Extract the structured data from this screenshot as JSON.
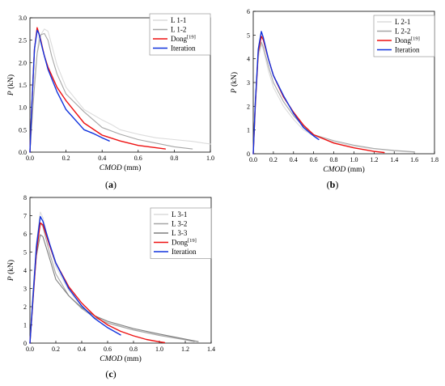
{
  "chart_data": [
    {
      "type": "line",
      "panel_label": "(a)",
      "xlabel": "CMOD (mm)",
      "ylabel": "P (kN)",
      "xlim": [
        0,
        1.0
      ],
      "ylim": [
        0,
        3.0
      ],
      "xticks": [
        "0.0",
        "0.2",
        "0.4",
        "0.6",
        "0.8",
        "1.0"
      ],
      "yticks": [
        "0.0",
        "0.5",
        "1.0",
        "1.5",
        "2.0",
        "2.5",
        "3.0"
      ],
      "legend_position": "top-right",
      "series": [
        {
          "name": "L 1-1",
          "color": "#dcdcdc",
          "x": [
            0,
            0.02,
            0.05,
            0.08,
            0.1,
            0.12,
            0.15,
            0.2,
            0.3,
            0.4,
            0.45,
            0.5,
            0.6,
            0.7,
            0.8,
            0.9,
            1.0
          ],
          "y": [
            0,
            1.5,
            2.55,
            2.75,
            2.7,
            2.4,
            1.95,
            1.45,
            0.95,
            0.72,
            0.62,
            0.5,
            0.4,
            0.32,
            0.28,
            0.24,
            0.18
          ]
        },
        {
          "name": "L 1-2",
          "color": "#a6a6a6",
          "x": [
            0,
            0.02,
            0.04,
            0.06,
            0.08,
            0.1,
            0.12,
            0.15,
            0.2,
            0.3,
            0.4,
            0.5,
            0.6,
            0.7,
            0.8,
            0.9
          ],
          "y": [
            0,
            1.2,
            2.2,
            2.62,
            2.65,
            2.5,
            2.15,
            1.75,
            1.3,
            0.9,
            0.55,
            0.4,
            0.28,
            0.2,
            0.12,
            0.07
          ]
        },
        {
          "name": "Dong",
          "superscript": "[19]",
          "color": "#ee1111",
          "x": [
            0,
            0.01,
            0.025,
            0.04,
            0.06,
            0.08,
            0.1,
            0.15,
            0.2,
            0.3,
            0.4,
            0.5,
            0.6,
            0.75
          ],
          "y": [
            0,
            1.0,
            2.3,
            2.78,
            2.5,
            2.15,
            1.9,
            1.45,
            1.15,
            0.65,
            0.38,
            0.25,
            0.15,
            0.07
          ]
        },
        {
          "name": "Iteration",
          "color": "#1133dd",
          "x": [
            0,
            0.01,
            0.025,
            0.04,
            0.05,
            0.07,
            0.1,
            0.15,
            0.2,
            0.3,
            0.35,
            0.4,
            0.44
          ],
          "y": [
            0,
            1.0,
            2.3,
            2.72,
            2.65,
            2.3,
            1.85,
            1.35,
            0.95,
            0.5,
            0.42,
            0.32,
            0.25
          ]
        }
      ]
    },
    {
      "type": "line",
      "panel_label": "(b)",
      "xlabel": "CMOD (mm)",
      "ylabel": "P (kN)",
      "xlim": [
        0,
        1.8
      ],
      "ylim": [
        0,
        6
      ],
      "xticks": [
        "0.0",
        "0.2",
        "0.4",
        "0.6",
        "0.8",
        "1.0",
        "1.2",
        "1.4",
        "1.6",
        "1.8"
      ],
      "yticks": [
        "0",
        "1",
        "2",
        "3",
        "4",
        "5",
        "6"
      ],
      "legend_position": "top-right",
      "series": [
        {
          "name": "L 2-1",
          "color": "#dcdcdc",
          "x": [
            0,
            0.02,
            0.05,
            0.08,
            0.1,
            0.15,
            0.2,
            0.3,
            0.4,
            0.5,
            0.6,
            0.8,
            1.0,
            1.2,
            1.4,
            1.6
          ],
          "y": [
            0,
            2.0,
            4.0,
            4.6,
            4.4,
            3.5,
            2.8,
            2.0,
            1.45,
            1.0,
            0.75,
            0.5,
            0.32,
            0.2,
            0.12,
            0.06
          ]
        },
        {
          "name": "L 2-2",
          "color": "#a6a6a6",
          "x": [
            0,
            0.02,
            0.05,
            0.08,
            0.1,
            0.15,
            0.2,
            0.3,
            0.4,
            0.5,
            0.6,
            0.8,
            1.0,
            1.2,
            1.4,
            1.6
          ],
          "y": [
            0,
            2.2,
            4.2,
            4.7,
            4.5,
            3.7,
            3.0,
            2.2,
            1.6,
            1.15,
            0.8,
            0.55,
            0.36,
            0.22,
            0.14,
            0.08
          ]
        },
        {
          "name": "Dong",
          "superscript": "[19]",
          "color": "#ee1111",
          "x": [
            0,
            0.02,
            0.05,
            0.08,
            0.1,
            0.15,
            0.2,
            0.3,
            0.4,
            0.5,
            0.6,
            0.8,
            1.0,
            1.2,
            1.3
          ],
          "y": [
            0,
            2.0,
            4.3,
            4.95,
            4.8,
            4.0,
            3.3,
            2.4,
            1.75,
            1.2,
            0.8,
            0.45,
            0.25,
            0.1,
            0.05
          ]
        },
        {
          "name": "Iteration",
          "color": "#1133dd",
          "x": [
            0,
            0.02,
            0.05,
            0.08,
            0.1,
            0.15,
            0.2,
            0.3,
            0.4,
            0.5,
            0.6,
            0.65
          ],
          "y": [
            0,
            2.1,
            4.4,
            5.15,
            4.9,
            4.0,
            3.3,
            2.45,
            1.7,
            1.1,
            0.75,
            0.6
          ]
        }
      ]
    },
    {
      "type": "line",
      "panel_label": "(c)",
      "xlabel": "CMOD (mm)",
      "ylabel": "P (kN)",
      "xlim": [
        0,
        1.4
      ],
      "ylim": [
        0,
        8
      ],
      "xticks": [
        "0.0",
        "0.2",
        "0.4",
        "0.6",
        "0.8",
        "1.0",
        "1.2",
        "1.4"
      ],
      "yticks": [
        "0",
        "1",
        "2",
        "3",
        "4",
        "5",
        "6",
        "7",
        "8"
      ],
      "legend_position": "top-right",
      "series": [
        {
          "name": "L 3-1",
          "color": "#dcdcdc",
          "x": [
            0,
            0.02,
            0.05,
            0.08,
            0.1,
            0.15,
            0.2,
            0.3,
            0.4,
            0.5,
            0.6,
            0.8,
            1.0,
            1.2,
            1.25
          ],
          "y": [
            0,
            2.5,
            5.5,
            7.2,
            6.9,
            5.4,
            4.2,
            2.9,
            2.0,
            1.5,
            1.15,
            0.75,
            0.45,
            0.2,
            0.1
          ]
        },
        {
          "name": "L 3-2",
          "color": "#a6a6a6",
          "x": [
            0,
            0.02,
            0.05,
            0.08,
            0.1,
            0.15,
            0.2,
            0.3,
            0.4,
            0.5,
            0.6,
            0.8,
            1.0,
            1.2,
            1.27
          ],
          "y": [
            0,
            2.4,
            5.3,
            6.6,
            6.4,
            5.0,
            3.8,
            2.6,
            1.9,
            1.4,
            1.1,
            0.72,
            0.42,
            0.18,
            0.08
          ]
        },
        {
          "name": "L 3-3",
          "color": "#7f7f7f",
          "x": [
            0,
            0.02,
            0.05,
            0.08,
            0.1,
            0.15,
            0.2,
            0.3,
            0.4,
            0.5,
            0.6,
            0.8,
            1.0,
            1.2,
            1.3
          ],
          "y": [
            0,
            2.2,
            4.8,
            5.95,
            5.85,
            4.7,
            3.5,
            2.6,
            1.95,
            1.5,
            1.2,
            0.8,
            0.5,
            0.22,
            0.08
          ]
        },
        {
          "name": "Dong",
          "superscript": "[19]",
          "color": "#ee1111",
          "x": [
            0,
            0.02,
            0.05,
            0.08,
            0.1,
            0.15,
            0.2,
            0.3,
            0.4,
            0.5,
            0.6,
            0.7,
            0.8,
            0.9,
            1.0,
            1.04
          ],
          "y": [
            0,
            2.0,
            5.0,
            6.6,
            6.5,
            5.4,
            4.4,
            3.1,
            2.2,
            1.5,
            1.0,
            0.65,
            0.4,
            0.2,
            0.07,
            0.03
          ]
        },
        {
          "name": "Iteration",
          "color": "#1133dd",
          "x": [
            0,
            0.02,
            0.05,
            0.08,
            0.1,
            0.15,
            0.2,
            0.3,
            0.4,
            0.5,
            0.6,
            0.7
          ],
          "y": [
            0,
            2.1,
            5.3,
            6.95,
            6.7,
            5.5,
            4.4,
            3.0,
            2.05,
            1.35,
            0.85,
            0.45
          ]
        }
      ]
    }
  ]
}
